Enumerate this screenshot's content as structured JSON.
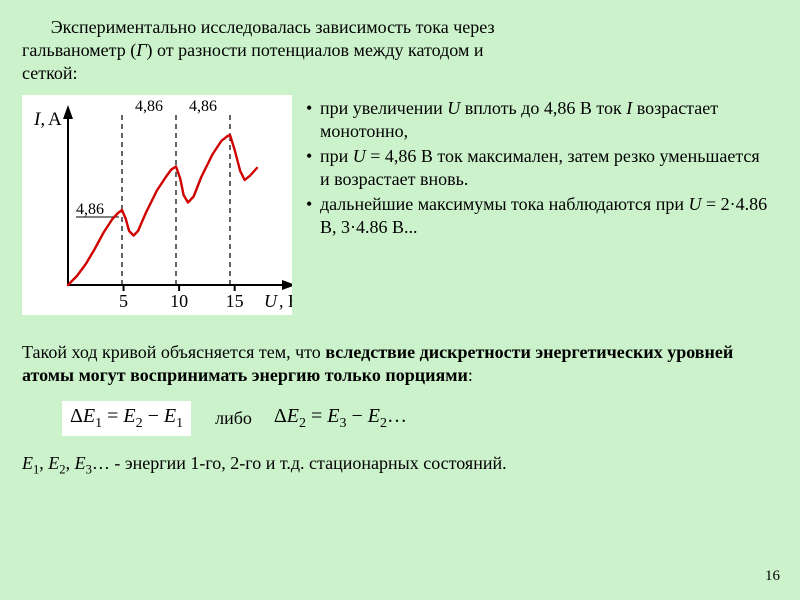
{
  "intro": {
    "line1_a": "Экспериментально исследовалась зависимость тока через",
    "line2_a": "гальванометр (",
    "g": "Г",
    "line2_b": ") от разности потенциалов между катодом и",
    "line3": "сеткой:"
  },
  "chart": {
    "type": "line",
    "background_color": "#ffffff",
    "line_color": "#d00000",
    "axis_color": "#000000",
    "dashed_color": "#000000",
    "y_label": "I,",
    "y_label_unit": "А",
    "x_label_var": "U",
    "x_label_unit": ", В",
    "x_ticks": [
      5,
      10,
      15
    ],
    "peak_labels": [
      "4,86",
      "4,86",
      "4,86"
    ],
    "xlim": [
      0,
      18
    ],
    "x_peak_positions": [
      4.86,
      9.72,
      14.58
    ],
    "line_width": 2.4,
    "points": [
      [
        0.0,
        0.0
      ],
      [
        0.8,
        0.06
      ],
      [
        1.6,
        0.14
      ],
      [
        2.4,
        0.24
      ],
      [
        3.2,
        0.35
      ],
      [
        4.0,
        0.44
      ],
      [
        4.5,
        0.48
      ],
      [
        4.86,
        0.5
      ],
      [
        5.2,
        0.44
      ],
      [
        5.5,
        0.36
      ],
      [
        5.9,
        0.33
      ],
      [
        6.3,
        0.36
      ],
      [
        7.0,
        0.48
      ],
      [
        8.0,
        0.63
      ],
      [
        8.8,
        0.72
      ],
      [
        9.3,
        0.77
      ],
      [
        9.72,
        0.79
      ],
      [
        10.1,
        0.71
      ],
      [
        10.4,
        0.6
      ],
      [
        10.8,
        0.55
      ],
      [
        11.3,
        0.59
      ],
      [
        12.0,
        0.72
      ],
      [
        13.0,
        0.87
      ],
      [
        13.8,
        0.96
      ],
      [
        14.3,
        0.99
      ],
      [
        14.58,
        1.0
      ],
      [
        15.0,
        0.9
      ],
      [
        15.5,
        0.76
      ],
      [
        15.9,
        0.7
      ],
      [
        16.4,
        0.73
      ],
      [
        17.0,
        0.78
      ]
    ]
  },
  "bullets": [
    {
      "a": "при увеличении ",
      "u": "U",
      "b": " вплоть до 4,86 В ток ",
      "i": "I",
      "c": " возрастает монотонно,"
    },
    {
      "a": "при ",
      "u": "U",
      "b": " = 4,86 В ток максимален, затем резко уменьшается и возрастает вновь."
    },
    {
      "a": "дальнейшие максимумы тока наблюдаются при ",
      "u": "U",
      "b": " = 2·4.86 В, 3·4.86 В..."
    }
  ],
  "para2": {
    "a": "Такой ход кривой объясняется тем, что ",
    "b": "вследствие дискретности энергетических уровней атомы могут воспринимать энергию только порциями",
    "c": ":"
  },
  "eq": {
    "de": "Δ",
    "e": "E",
    "box": "ΔE₁ = E₂ − E₁",
    "either": "либо",
    "plain": "ΔE₂ = E₃ − E₂…"
  },
  "last": {
    "e": "E",
    "text": "… - энергии 1-го, 2-го и т.д. стационарных состояний."
  },
  "page_number": "16"
}
